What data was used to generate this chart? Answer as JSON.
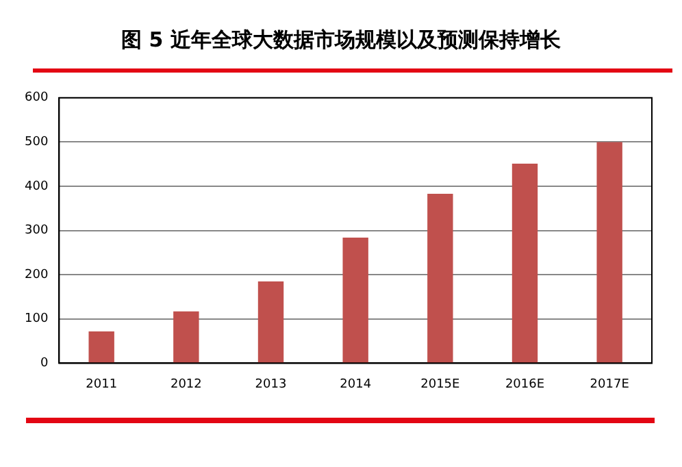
{
  "chart_data": {
    "type": "bar",
    "title": "图 5  近年全球大数据市场规模以及预测保持增长",
    "categories": [
      "2011",
      "2012",
      "2013",
      "2014",
      "2015E",
      "2016E",
      "2017E"
    ],
    "values": [
      72,
      117,
      185,
      284,
      383,
      451,
      500
    ],
    "color": "#c0504d",
    "ylim": [
      0,
      600
    ],
    "yticks": [
      0,
      100,
      200,
      300,
      400,
      500,
      600
    ],
    "grid": "y",
    "legend": false
  }
}
